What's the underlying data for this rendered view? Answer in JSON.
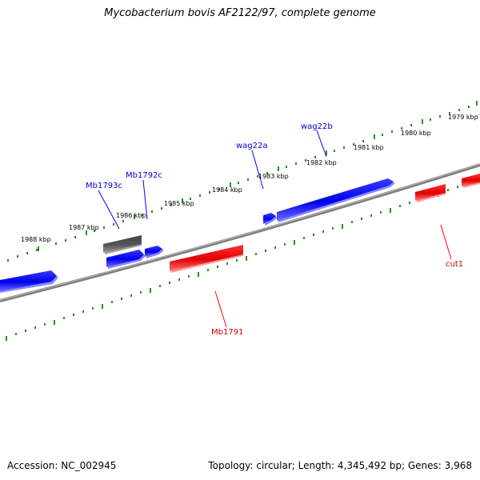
{
  "title": "Mycobacterium bovis AF2122/97, complete genome",
  "footer": {
    "accession": "Accession: NC_002945",
    "summary": "Topology: circular; Length: 4,345,492 bp; Genes: 3,968"
  },
  "scale_labels": [
    "1988 kbp",
    "1987 kbp",
    "1986 kbp",
    "1985 kbp",
    "1984 kbp",
    "1983 kbp",
    "1982 kbp",
    "1981 kbp",
    "1980 kbp",
    "1979 kbp"
  ],
  "gene_labels": {
    "mb1793c": "Mb1793c",
    "mb1792c": "Mb1792c",
    "wag22a": "wag22a",
    "wag22b": "wag22b",
    "mb1791": "Mb1791",
    "cut1": "cut1"
  },
  "colors": {
    "forward": "#0000ff",
    "reverse": "#ff0000",
    "other": "#666666",
    "ticks": "#2e8b22",
    "backbone": "#808080"
  }
}
